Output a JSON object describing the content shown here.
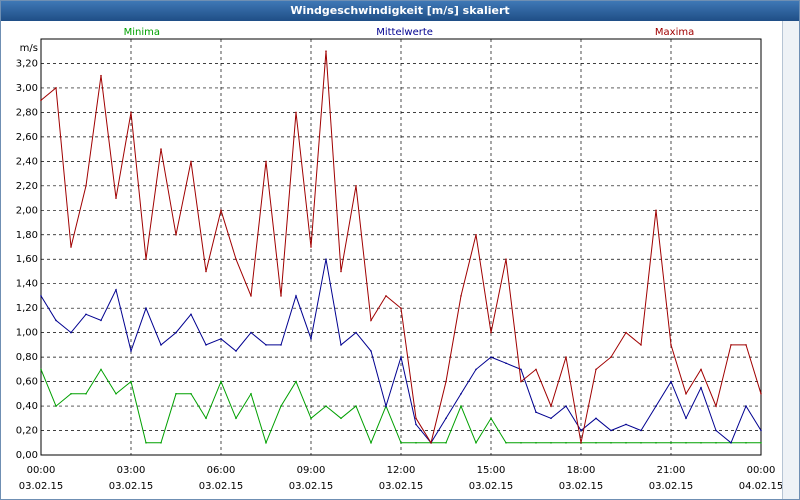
{
  "window": {
    "title": "Windgeschwindigkeit [m/s] skaliert"
  },
  "chart_data": {
    "type": "line",
    "title": "Windgeschwindigkeit [m/s] skaliert",
    "ylabel": "m/s",
    "ylim": [
      0,
      3.4
    ],
    "y_ticks": [
      "0,00",
      "0,20",
      "0,40",
      "0,60",
      "0,80",
      "1,00",
      "1,20",
      "1,40",
      "1,60",
      "1,80",
      "2,00",
      "2,20",
      "2,40",
      "2,60",
      "2,80",
      "3,00",
      "3,20"
    ],
    "x_ticks": [
      {
        "time": "00:00",
        "date": "03.02.15"
      },
      {
        "time": "03:00",
        "date": "03.02.15"
      },
      {
        "time": "06:00",
        "date": "03.02.15"
      },
      {
        "time": "09:00",
        "date": "03.02.15"
      },
      {
        "time": "12:00",
        "date": "03.02.15"
      },
      {
        "time": "15:00",
        "date": "03.02.15"
      },
      {
        "time": "18:00",
        "date": "03.02.15"
      },
      {
        "time": "21:00",
        "date": "03.02.15"
      },
      {
        "time": "00:00",
        "date": "04.02.15"
      }
    ],
    "x_unit": "hours",
    "xlim": [
      0,
      24
    ],
    "grid": true,
    "series": [
      {
        "name": "Minima",
        "color": "#00a000",
        "x": [
          0,
          0.5,
          1,
          1.5,
          2,
          2.5,
          3,
          3.5,
          4,
          4.5,
          5,
          5.5,
          6,
          6.5,
          7,
          7.5,
          8,
          8.5,
          9,
          9.5,
          10,
          10.5,
          11,
          11.5,
          12,
          12.5,
          13,
          13.5,
          14,
          14.5,
          15,
          15.5,
          16,
          16.5,
          17,
          17.5,
          18,
          18.5,
          19,
          19.5,
          20,
          20.5,
          21,
          21.5,
          22,
          22.5,
          23,
          23.5,
          24
        ],
        "values": [
          0.7,
          0.4,
          0.5,
          0.5,
          0.7,
          0.5,
          0.6,
          0.1,
          0.1,
          0.5,
          0.5,
          0.3,
          0.6,
          0.3,
          0.5,
          0.1,
          0.4,
          0.6,
          0.3,
          0.4,
          0.3,
          0.4,
          0.1,
          0.4,
          0.1,
          0.1,
          0.1,
          0.1,
          0.4,
          0.1,
          0.3,
          0.1,
          0.1,
          0.1,
          0.1,
          0.1,
          0.1,
          0.1,
          0.1,
          0.1,
          0.1,
          0.1,
          0.1,
          0.1,
          0.1,
          0.1,
          0.1,
          0.1,
          0.1
        ]
      },
      {
        "name": "Mittelwerte",
        "color": "#000090",
        "x": [
          0,
          0.5,
          1,
          1.5,
          2,
          2.5,
          3,
          3.5,
          4,
          4.5,
          5,
          5.5,
          6,
          6.5,
          7,
          7.5,
          8,
          8.5,
          9,
          9.5,
          10,
          10.5,
          11,
          11.5,
          12,
          12.5,
          13,
          13.5,
          14,
          14.5,
          15,
          15.5,
          16,
          16.5,
          17,
          17.5,
          18,
          18.5,
          19,
          19.5,
          20,
          20.5,
          21,
          21.5,
          22,
          22.5,
          23,
          23.5,
          24
        ],
        "values": [
          1.3,
          1.1,
          1.0,
          1.15,
          1.1,
          1.35,
          0.85,
          1.2,
          0.9,
          1.0,
          1.15,
          0.9,
          0.95,
          0.85,
          1.0,
          0.9,
          0.9,
          1.3,
          0.95,
          1.6,
          0.9,
          1.0,
          0.85,
          0.4,
          0.8,
          0.25,
          0.1,
          0.3,
          0.5,
          0.7,
          0.8,
          0.75,
          0.7,
          0.35,
          0.3,
          0.4,
          0.2,
          0.3,
          0.2,
          0.25,
          0.2,
          0.4,
          0.6,
          0.3,
          0.55,
          0.2,
          0.1,
          0.4,
          0.2
        ]
      },
      {
        "name": "Maxima",
        "color": "#a00000",
        "x": [
          0,
          0.5,
          1,
          1.5,
          2,
          2.5,
          3,
          3.5,
          4,
          4.5,
          5,
          5.5,
          6,
          6.5,
          7,
          7.5,
          8,
          8.5,
          9,
          9.5,
          10,
          10.5,
          11,
          11.5,
          12,
          12.5,
          13,
          13.5,
          14,
          14.5,
          15,
          15.5,
          16,
          16.5,
          17,
          17.5,
          18,
          18.5,
          19,
          19.5,
          20,
          20.5,
          21,
          21.5,
          22,
          22.5,
          23,
          23.5,
          24
        ],
        "values": [
          2.9,
          3.0,
          1.7,
          2.2,
          3.1,
          2.1,
          2.8,
          1.6,
          2.5,
          1.8,
          2.4,
          1.5,
          2.0,
          1.6,
          1.3,
          2.4,
          1.3,
          2.8,
          1.7,
          3.3,
          1.5,
          2.2,
          1.1,
          1.3,
          1.2,
          0.3,
          0.1,
          0.6,
          1.3,
          1.8,
          1.0,
          1.6,
          0.6,
          0.7,
          0.4,
          0.8,
          0.1,
          0.7,
          0.8,
          1.0,
          0.9,
          2.0,
          0.9,
          0.5,
          0.7,
          0.4,
          0.9,
          0.9,
          0.5
        ]
      }
    ]
  }
}
